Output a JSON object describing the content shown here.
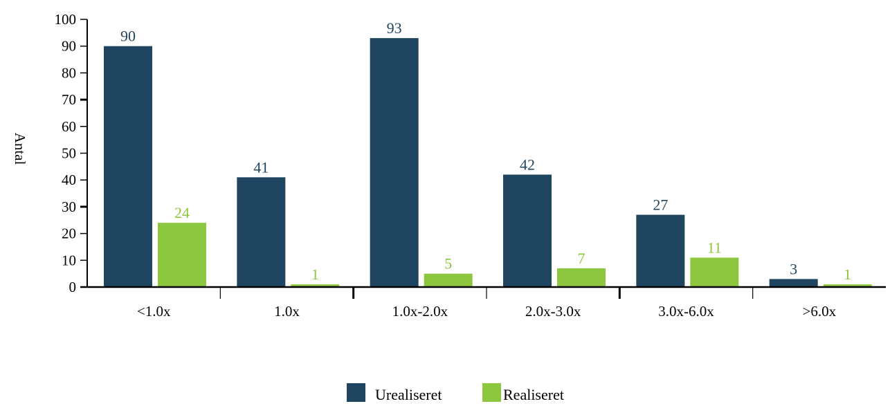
{
  "chart_data": {
    "type": "bar",
    "title": "",
    "xlabel": "",
    "ylabel": "Antal",
    "ylim": [
      0,
      100
    ],
    "yticks": [
      0,
      10,
      20,
      30,
      40,
      50,
      60,
      70,
      80,
      90,
      100
    ],
    "categories": [
      "<1.0x",
      "1.0x",
      "1.0x-2.0x",
      "2.0x-3.0x",
      "3.0x-6.0x",
      ">6.0x"
    ],
    "series": [
      {
        "name": "Urealiseret",
        "color": "#1f4560",
        "values": [
          90,
          41,
          93,
          42,
          27,
          3
        ]
      },
      {
        "name": "Realiseret",
        "color": "#8dc63f",
        "values": [
          24,
          1,
          5,
          7,
          11,
          1
        ]
      }
    ],
    "grid": false,
    "legend_position": "bottom-center",
    "data_labels": true
  }
}
